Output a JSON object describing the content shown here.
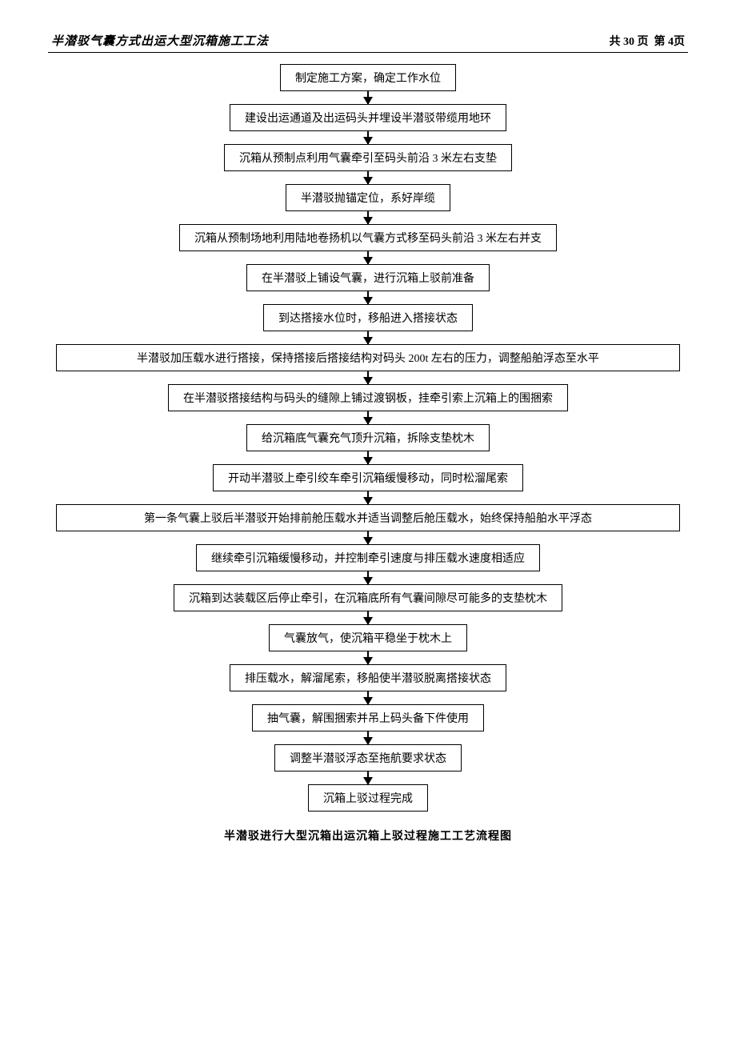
{
  "header": {
    "title": "半潜驳气囊方式出运大型沉箱施工工法",
    "pageinfo_prefix": "共",
    "total_pages": "30",
    "page_unit": "页",
    "page_sep": "第",
    "current_page": "4",
    "page_suffix": "页"
  },
  "flowchart": {
    "type": "flowchart",
    "border_color": "#000000",
    "background_color": "#ffffff",
    "node_fontsize": 14,
    "arrow_color": "#000000",
    "nodes": [
      {
        "text": "制定施工方案，确定工作水位",
        "wide": false
      },
      {
        "text": "建设出运通道及出运码头并埋设半潜驳带缆用地环",
        "wide": false
      },
      {
        "text": "沉箱从预制点利用气囊牵引至码头前沿 3 米左右支垫",
        "wide": false
      },
      {
        "text": "半潜驳抛锚定位，系好岸缆",
        "wide": false
      },
      {
        "text": "沉箱从预制场地利用陆地卷扬机以气囊方式移至码头前沿 3 米左右并支",
        "wide": false
      },
      {
        "text": "在半潜驳上铺设气囊，进行沉箱上驳前准备",
        "wide": false
      },
      {
        "text": "到达搭接水位时，移船进入搭接状态",
        "wide": false
      },
      {
        "text": "半潜驳加压载水进行搭接，保持搭接后搭接结构对码头 200t 左右的压力，调整船舶浮态至水平",
        "wide": true
      },
      {
        "text": "在半潜驳搭接结构与码头的缝隙上铺过渡钢板，挂牵引索上沉箱上的围捆索",
        "wide": false
      },
      {
        "text": "给沉箱底气囊充气顶升沉箱，拆除支垫枕木",
        "wide": false
      },
      {
        "text": "开动半潜驳上牵引绞车牵引沉箱缓慢移动，同时松溜尾索",
        "wide": false
      },
      {
        "text": "第一条气囊上驳后半潜驳开始排前舱压载水并适当调整后舱压载水，始终保持船舶水平浮态",
        "wide": true
      },
      {
        "text": "继续牵引沉箱缓慢移动，并控制牵引速度与排压载水速度相适应",
        "wide": false
      },
      {
        "text": "沉箱到达装载区后停止牵引，在沉箱底所有气囊间隙尽可能多的支垫枕木",
        "wide": false
      },
      {
        "text": "气囊放气，使沉箱平稳坐于枕木上",
        "wide": false
      },
      {
        "text": "排压载水，解溜尾索，移船使半潜驳脱离搭接状态",
        "wide": false
      },
      {
        "text": "抽气囊，解围捆索并吊上码头备下件使用",
        "wide": false
      },
      {
        "text": "调整半潜驳浮态至拖航要求状态",
        "wide": false
      },
      {
        "text": "沉箱上驳过程完成",
        "wide": false
      }
    ]
  },
  "caption": "半潜驳进行大型沉箱出运沉箱上驳过程施工工艺流程图"
}
